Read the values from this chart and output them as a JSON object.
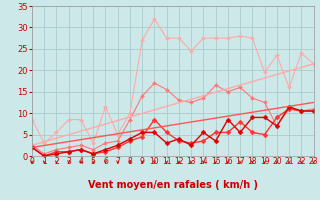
{
  "xlabel": "Vent moyen/en rafales ( km/h )",
  "background_color": "#cce8e8",
  "grid_color": "#aacccc",
  "x_max": 23,
  "y_max": 35,
  "y_ticks": [
    0,
    5,
    10,
    15,
    20,
    25,
    30,
    35
  ],
  "x_ticks": [
    0,
    1,
    2,
    3,
    4,
    5,
    6,
    7,
    8,
    9,
    10,
    11,
    12,
    13,
    14,
    15,
    16,
    17,
    18,
    19,
    20,
    21,
    22,
    23
  ],
  "series": [
    {
      "color": "#ffaaaa",
      "linewidth": 0.8,
      "marker": "D",
      "markersize": 2.0,
      "x": [
        0,
        1,
        2,
        3,
        4,
        5,
        6,
        7,
        8,
        9,
        10,
        11,
        12,
        13,
        14,
        15,
        16,
        17,
        18,
        19,
        20,
        21,
        22,
        23
      ],
      "y": [
        8.5,
        3.0,
        5.5,
        8.5,
        8.5,
        3.0,
        11.5,
        5.0,
        10.0,
        27.0,
        32.0,
        27.5,
        27.5,
        24.5,
        27.5,
        27.5,
        27.5,
        28.0,
        27.5,
        19.5,
        23.5,
        16.0,
        24.0,
        21.5
      ]
    },
    {
      "color": "#ff7777",
      "linewidth": 0.8,
      "marker": "D",
      "markersize": 2.0,
      "x": [
        0,
        1,
        2,
        3,
        4,
        5,
        6,
        7,
        8,
        9,
        10,
        11,
        12,
        13,
        14,
        15,
        16,
        17,
        18,
        19,
        20,
        21,
        22,
        23
      ],
      "y": [
        2.5,
        0.5,
        1.5,
        2.0,
        2.5,
        1.5,
        3.0,
        3.5,
        8.5,
        14.0,
        17.0,
        15.5,
        13.0,
        12.5,
        13.5,
        16.5,
        15.0,
        16.0,
        13.5,
        12.5,
        7.0,
        11.0,
        10.5,
        11.0
      ]
    },
    {
      "color": "#ff3333",
      "linewidth": 1.0,
      "marker": "D",
      "markersize": 2.5,
      "x": [
        0,
        1,
        2,
        3,
        4,
        5,
        6,
        7,
        8,
        9,
        10,
        11,
        12,
        13,
        14,
        15,
        16,
        17,
        18,
        19,
        20,
        21,
        22,
        23
      ],
      "y": [
        2.0,
        0.0,
        1.0,
        1.0,
        1.5,
        0.5,
        1.0,
        2.0,
        3.5,
        4.5,
        8.5,
        5.5,
        3.5,
        3.0,
        3.5,
        5.5,
        5.5,
        8.0,
        5.5,
        5.0,
        9.0,
        11.0,
        10.5,
        10.5
      ]
    },
    {
      "color": "#dd0000",
      "linewidth": 1.0,
      "marker": "D",
      "markersize": 2.5,
      "x": [
        0,
        1,
        2,
        3,
        4,
        5,
        6,
        7,
        8,
        9,
        10,
        11,
        12,
        13,
        14,
        15,
        16,
        17,
        18,
        19,
        20,
        21,
        22,
        23
      ],
      "y": [
        2.0,
        0.0,
        0.5,
        1.0,
        1.5,
        0.5,
        1.5,
        2.5,
        4.0,
        5.5,
        5.5,
        3.0,
        4.0,
        2.5,
        5.5,
        3.5,
        8.5,
        5.5,
        9.0,
        9.0,
        7.0,
        11.5,
        10.5,
        10.5
      ]
    },
    {
      "color": "#ff5555",
      "linewidth": 1.0,
      "marker": null,
      "x": [
        0,
        23
      ],
      "y": [
        2.0,
        12.5
      ]
    },
    {
      "color": "#ffaaaa",
      "linewidth": 1.0,
      "marker": null,
      "x": [
        0,
        23
      ],
      "y": [
        2.5,
        21.5
      ]
    }
  ],
  "arrow_color": "#cc0000",
  "xlabel_color": "#cc0000",
  "xlabel_fontsize": 7,
  "tick_color": "#cc0000",
  "tick_fontsize": 5.5
}
